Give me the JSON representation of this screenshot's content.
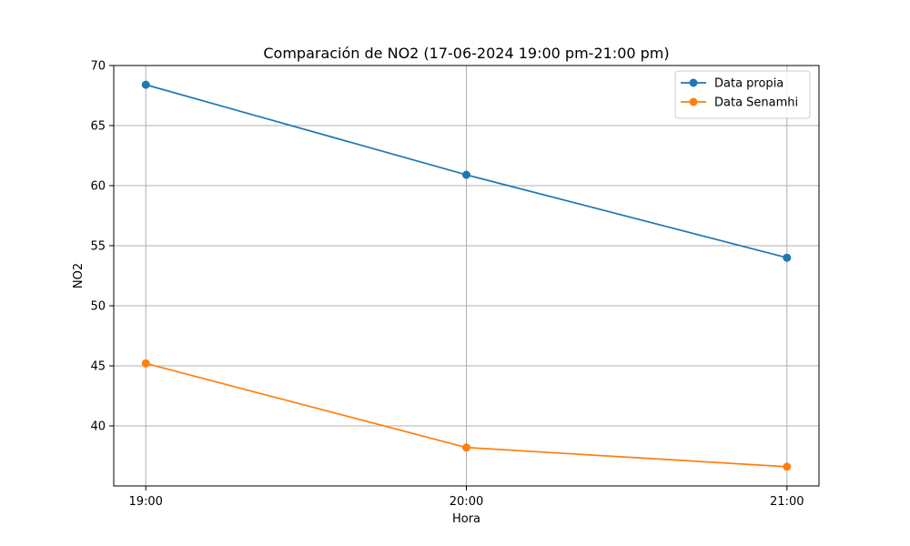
{
  "chart_data": {
    "type": "line",
    "title": "Comparación de NO2 (17-06-2024 19:00 pm-21:00 pm)",
    "xlabel": "Hora",
    "ylabel": "NO2",
    "categories": [
      "19:00",
      "20:00",
      "21:00"
    ],
    "ylim": [
      35,
      70
    ],
    "yticks": [
      40,
      45,
      50,
      55,
      60,
      65,
      70
    ],
    "grid": true,
    "legend_position": "top-right",
    "series": [
      {
        "name": "Data propia",
        "color": "#1f77b4",
        "marker": "circle",
        "values": [
          68.4,
          60.9,
          54.0
        ]
      },
      {
        "name": "Data Senamhi",
        "color": "#ff7f0e",
        "marker": "circle",
        "values": [
          45.2,
          38.2,
          36.6
        ]
      }
    ]
  }
}
